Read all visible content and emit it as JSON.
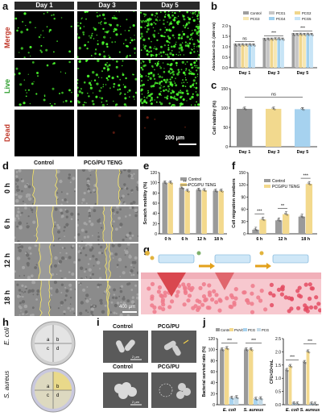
{
  "panels": {
    "a": "a",
    "b": "b",
    "c": "c",
    "d": "d",
    "e": "e",
    "f": "f",
    "g": "g",
    "h": "h",
    "i": "i",
    "j": "j"
  },
  "panel_a": {
    "days": [
      "Day 1",
      "Day 3",
      "Day 5"
    ],
    "rows": [
      "Merge",
      "Live",
      "Dead"
    ],
    "scale_bar": "200 μm"
  },
  "panel_d": {
    "columns": [
      "Control",
      "PCG/PU TENG"
    ],
    "rows": [
      "0 h",
      "6 h",
      "12 h",
      "18 h"
    ],
    "scale_bar": "400 μm"
  },
  "panel_h": {
    "rows": [
      "E. coli",
      "S. aureus"
    ],
    "quadrants": [
      "a",
      "b",
      "c",
      "d"
    ]
  },
  "panel_i": {
    "columns": [
      "Control",
      "PCG/PU"
    ],
    "scale_bar": "2 μm"
  },
  "colors": {
    "control": "#8c8c8c",
    "pca": "#f1d78a",
    "pcg": "#a8d3ef",
    "pcg_pu": "#bcd4e6",
    "fluor": "#4cff2e",
    "pink": "#f3a1ad"
  },
  "chart_data": [
    {
      "id": "b",
      "type": "bar",
      "ylabel": "Absorbance O.D. (450 nm)",
      "categories": [
        "Day 1",
        "Day 3",
        "Day 5"
      ],
      "ylim": [
        0,
        2.0
      ],
      "yticks": [
        0.0,
        0.5,
        1.0,
        1.5,
        2.0
      ],
      "legend": [
        "Control",
        "PCG1",
        "PCG2",
        "PCG3",
        "PCG4",
        "PCG5"
      ],
      "series": [
        {
          "name": "Control",
          "values": [
            1.08,
            1.35,
            1.58
          ]
        },
        {
          "name": "PCG1",
          "values": [
            1.08,
            1.36,
            1.58
          ]
        },
        {
          "name": "PCG2",
          "values": [
            1.09,
            1.36,
            1.59
          ]
        },
        {
          "name": "PCG3",
          "values": [
            1.08,
            1.37,
            1.58
          ]
        },
        {
          "name": "PCG4",
          "values": [
            1.09,
            1.37,
            1.59
          ]
        },
        {
          "name": "PCG5",
          "values": [
            1.08,
            1.36,
            1.58
          ]
        }
      ],
      "annotations": [
        "ns",
        "***",
        "***"
      ]
    },
    {
      "id": "c",
      "type": "bar",
      "ylabel": "Cell viability (%)",
      "categories": [
        "Day 1",
        "Day 3",
        "Day 5"
      ],
      "values": [
        98,
        98,
        97
      ],
      "ylim": [
        0,
        150
      ],
      "yticks": [
        0,
        50,
        100,
        150
      ],
      "annotations": [
        "ns"
      ]
    },
    {
      "id": "e",
      "type": "bar",
      "ylabel": "Scratch mobility (%)",
      "categories": [
        "0 h",
        "6 h",
        "12 h",
        "18 h"
      ],
      "ylim": [
        0,
        120
      ],
      "yticks": [
        0,
        20,
        40,
        60,
        80,
        100,
        120
      ],
      "legend": [
        "Control",
        "PCG/PU TENG"
      ],
      "series": [
        {
          "name": "Control",
          "values": [
            100,
            90,
            86,
            84
          ]
        },
        {
          "name": "PCG/PU TENG",
          "values": [
            100,
            84,
            85,
            84
          ]
        }
      ],
      "annotations": [
        "**"
      ]
    },
    {
      "id": "f",
      "type": "bar",
      "ylabel": "Cell migration numbers",
      "categories": [
        "6 h",
        "12 h",
        "18 h"
      ],
      "ylim": [
        0,
        150
      ],
      "yticks": [
        0,
        30,
        60,
        90,
        120,
        150
      ],
      "legend": [
        "Control",
        "PCG/PU TENG"
      ],
      "series": [
        {
          "name": "Control",
          "values": [
            10,
            33,
            42
          ]
        },
        {
          "name": "PCG/PU TENG",
          "values": [
            35,
            48,
            122
          ]
        }
      ],
      "annotations": [
        "***",
        "**",
        "***"
      ]
    },
    {
      "id": "j1",
      "type": "bar",
      "ylabel": "Bacterial survival ratio (%)",
      "categories": [
        "E. coli",
        "S. aureus"
      ],
      "ylim": [
        0,
        120
      ],
      "yticks": [
        0,
        20,
        40,
        60,
        80,
        100,
        120
      ],
      "legend": [
        "Control",
        "PVA/CS",
        "PCG",
        "PCG/PU"
      ],
      "series": [
        {
          "name": "Control",
          "values": [
            100,
            100
          ]
        },
        {
          "name": "PVA/CS",
          "values": [
            102,
            100
          ]
        },
        {
          "name": "PCG",
          "values": [
            12,
            10
          ]
        },
        {
          "name": "PCG/PU",
          "values": [
            13,
            11
          ]
        }
      ],
      "annotations": [
        "***",
        "***"
      ]
    },
    {
      "id": "j2",
      "type": "bar",
      "ylabel": "CFU×10⁸/mL",
      "categories": [
        "E. coli",
        "S. aureus"
      ],
      "ylim": [
        0,
        2.5
      ],
      "yticks": [
        0.0,
        0.5,
        1.0,
        1.5,
        2.0,
        2.5
      ],
      "series": [
        {
          "name": "Control",
          "values": [
            1.3,
            1.6
          ]
        },
        {
          "name": "PVA/CS",
          "values": [
            1.45,
            2.0
          ]
        },
        {
          "name": "PCG",
          "values": [
            0.04,
            0.03
          ]
        },
        {
          "name": "PCG/PU",
          "values": [
            0.03,
            0.02
          ]
        }
      ],
      "annotations": [
        "***",
        "***"
      ]
    }
  ]
}
